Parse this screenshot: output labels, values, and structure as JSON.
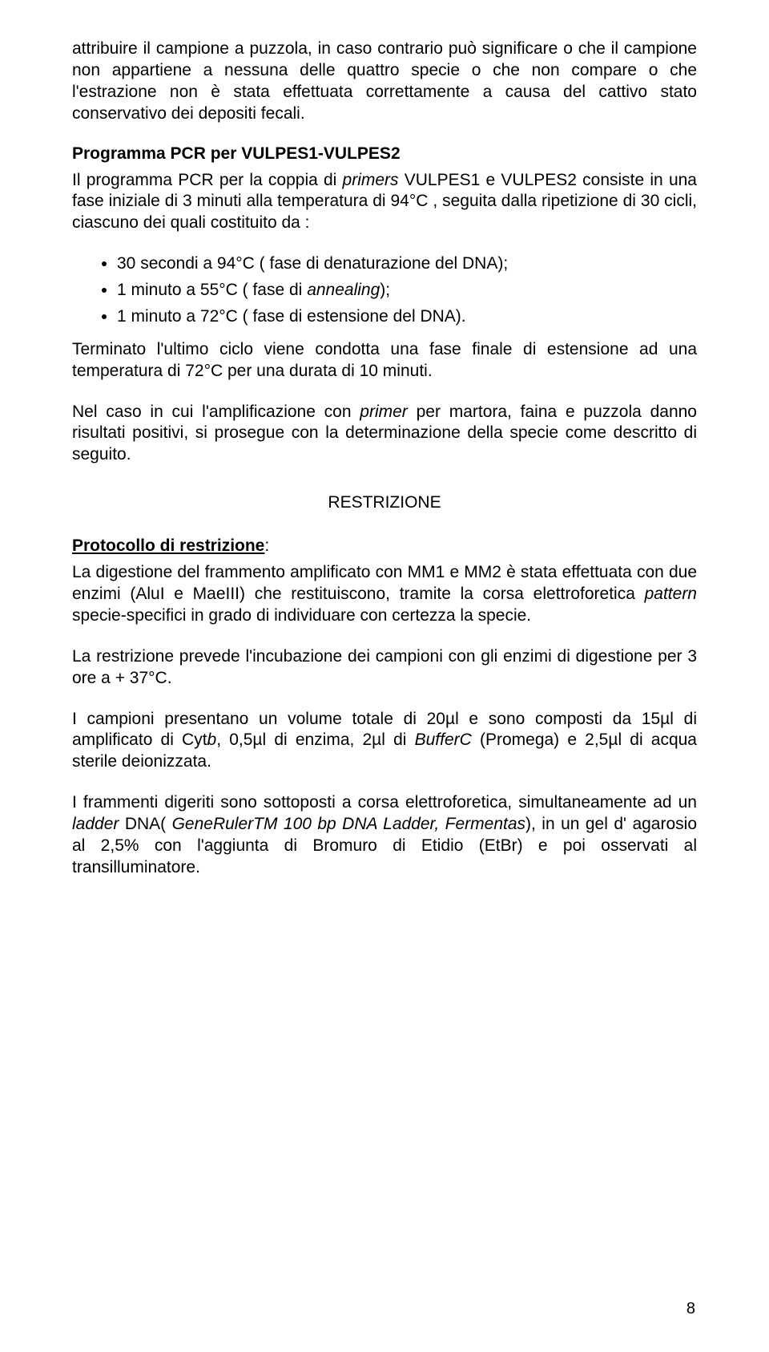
{
  "intro_para": "attribuire il campione a puzzola, in caso contrario può significare o che il campione non appartiene a nessuna delle quattro specie o che non compare o che l'estrazione non è stata effettuata correttamente a causa del cattivo stato conservativo dei depositi fecali.",
  "section1": {
    "title": "Programma PCR per VULPES1-VULPES2",
    "para_parts": {
      "t1": "Il programma PCR per la coppia di ",
      "t2": "primers",
      "t3": " VULPES1 e VULPES2 consiste in una fase iniziale di 3 minuti alla temperatura di 94°C , seguita dalla ripetizione di 30 cicli, ciascuno dei quali costituito da :"
    },
    "bullets": [
      {
        "a": "30 secondi a 94°C ( fase di denaturazione del DNA);"
      },
      {
        "a": "1 minuto a 55°C ( fase di ",
        "i": "annealing",
        "b": ");"
      },
      {
        "a": "1 minuto a 72°C ( fase di estensione del DNA)."
      }
    ],
    "para2": "Terminato l'ultimo ciclo viene condotta una fase finale di estensione ad una temperatura di 72°C per una durata di 10 minuti.",
    "para3_parts": {
      "t1": "Nel caso in cui l'amplificazione con ",
      "t2": "primer",
      "t3": " per martora, faina e puzzola danno risultati positivi, si prosegue con la determinazione della specie come descritto di seguito."
    }
  },
  "section2": {
    "title": "RESTRIZIONE"
  },
  "section3": {
    "title": "Protocollo di restrizione",
    "para1_parts": {
      "t1": "La digestione del frammento amplificato con MM1 e MM2 è stata effettuata con due enzimi (AluI e MaeIII) che restituiscono, tramite la corsa elettroforetica ",
      "t2": "pattern",
      "t3": " specie-specifici in grado di individuare con certezza la specie."
    },
    "para2": "La restrizione prevede l'incubazione dei campioni con gli enzimi di digestione per 3 ore a + 37°C.",
    "para3_parts": {
      "t1": "I campioni presentano un volume totale di 20µl e sono composti da 15µl di amplificato di Cyt",
      "t2": "b",
      "t3": ", 0,5µl di enzima, 2µl di ",
      "t4": "BufferC",
      "t5": " (Promega) e 2,5µl di acqua sterile deionizzata."
    },
    "para4_parts": {
      "t1": "I frammenti digeriti sono sottoposti a corsa elettroforetica, simultaneamente ad un ",
      "t2": "ladder",
      "t3": " DNA( ",
      "t4": "GeneRulerTM 100 bp DNA Ladder, Fermentas",
      "t5": "), in un gel d' agarosio al 2,5% con l'aggiunta di Bromuro di Etidio (EtBr) e poi osservati al transilluminatore."
    }
  },
  "page_number": "8"
}
